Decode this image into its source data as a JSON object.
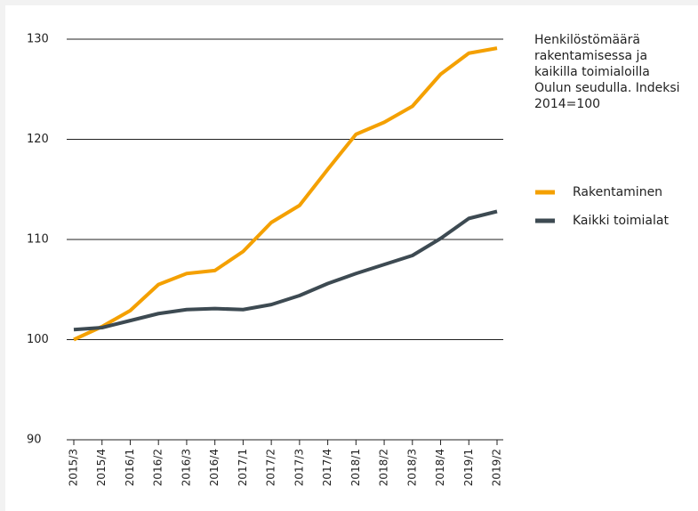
{
  "chart_data": {
    "type": "line",
    "title": "Henkilöstömäärä rakentamisessa ja kaikilla toimialoilla Oulun seudulla. Indeksi 2014=100",
    "categories": [
      "2015/3",
      "2015/4",
      "2016/1",
      "2016/2",
      "2016/3",
      "2016/4",
      "2017/1",
      "2017/2",
      "2017/3",
      "2017/4",
      "2018/1",
      "2018/2",
      "2018/3",
      "2018/4",
      "2019/1",
      "2019/2"
    ],
    "series": [
      {
        "name": "Rakentaminen",
        "color": "#f4a000",
        "values": [
          100.0,
          101.3,
          102.9,
          105.5,
          106.6,
          106.9,
          108.8,
          111.7,
          113.4,
          117.0,
          120.5,
          121.7,
          123.3,
          126.5,
          128.6,
          129.1
        ]
      },
      {
        "name": "Kaikki toimialat",
        "color": "#3d4a52",
        "values": [
          101.0,
          101.2,
          101.9,
          102.6,
          103.0,
          103.1,
          103.0,
          103.5,
          104.4,
          105.6,
          106.6,
          107.5,
          108.4,
          110.1,
          112.1,
          112.8
        ]
      }
    ],
    "ylim": [
      90,
      130
    ],
    "yticks": [
      90,
      100,
      110,
      120,
      130
    ],
    "grid": true
  }
}
